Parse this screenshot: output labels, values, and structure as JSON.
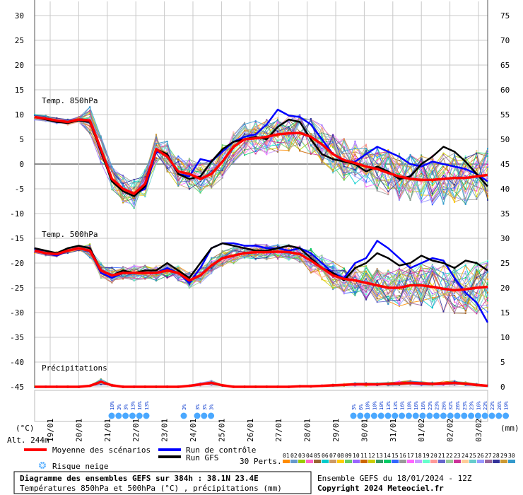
{
  "chart_data": {
    "type": "line",
    "title": "Diagramme des ensembles GEFS sur 384h : 38.1N 23.4E",
    "subtitle": "Températures 850hPa et 500hPa (°C) , précipitations (mm)",
    "left_axis": {
      "label": "(°C)",
      "ticks": [
        30,
        25,
        20,
        15,
        10,
        5,
        0,
        -5,
        -10,
        -15,
        -20,
        -25,
        -30,
        -35,
        -40,
        -45
      ],
      "ylim": [
        -45,
        30
      ]
    },
    "right_axis": {
      "label": "(mm)",
      "ticks": [
        75,
        70,
        65,
        60,
        55,
        50,
        45,
        40,
        35,
        30,
        25,
        20,
        15,
        10,
        5,
        0
      ],
      "ylim": [
        0,
        75
      ]
    },
    "x_labels": [
      "19/01",
      "20/01",
      "21/01",
      "22/01",
      "23/01",
      "24/01",
      "25/01",
      "26/01",
      "27/01",
      "28/01",
      "29/01",
      "30/01",
      "31/01",
      "01/02",
      "02/02",
      "03/02"
    ],
    "altitude": "Alt. 244m",
    "panel_labels": {
      "t850": "Temp. 850hPa",
      "t500": "Temp. 500hPa",
      "precip": "Précipitations"
    },
    "t850_mean": [
      9.5,
      9.2,
      8.8,
      8.5,
      9.0,
      8.8,
      3.0,
      -3.0,
      -5.0,
      -6.0,
      -4.0,
      3.0,
      1.5,
      -1.5,
      -2.0,
      -3.0,
      -2.0,
      0.5,
      3.5,
      5.0,
      5.2,
      5.5,
      6.0,
      6.2,
      6.3,
      5.5,
      4.0,
      2.0,
      0.8,
      0.2,
      -0.5,
      -1.0,
      -1.8,
      -2.5,
      -3.0,
      -3.2,
      -3.2,
      -3.0,
      -2.8,
      -2.8,
      -2.5,
      -2.2
    ],
    "t850_control": [
      9.5,
      9.2,
      8.6,
      8.3,
      9.0,
      8.8,
      3.0,
      -3.5,
      -5.0,
      -6.0,
      -5.0,
      2.5,
      2.0,
      -2.0,
      -2.5,
      1.0,
      0.5,
      2.5,
      4.5,
      5.5,
      6.0,
      8.0,
      11.0,
      9.8,
      9.5,
      8.0,
      5.0,
      2.0,
      0.5,
      0.5,
      2.0,
      3.5,
      2.5,
      1.5,
      0.0,
      -0.5,
      0.5,
      0.0,
      -0.5,
      -1.0,
      -2.0,
      -3.5
    ],
    "t850_gfs": [
      9.5,
      9.0,
      8.5,
      8.3,
      8.8,
      8.5,
      2.5,
      -3.5,
      -5.5,
      -6.5,
      -4.5,
      3.0,
      2.0,
      -2.0,
      -3.0,
      -2.5,
      0.5,
      3.0,
      4.5,
      5.0,
      5.5,
      5.0,
      7.5,
      9.0,
      8.5,
      5.0,
      2.0,
      1.0,
      0.5,
      0.0,
      -1.5,
      -0.5,
      -1.5,
      -3.0,
      -2.5,
      0.0,
      1.5,
      3.5,
      2.5,
      0.5,
      -2.0,
      -4.5
    ],
    "t500_mean": [
      -17.5,
      -18.0,
      -18.2,
      -17.5,
      -17.0,
      -17.5,
      -21.5,
      -22.5,
      -22.0,
      -22.0,
      -22.0,
      -22.0,
      -21.5,
      -22.0,
      -23.5,
      -22.5,
      -20.5,
      -19.0,
      -18.5,
      -18.0,
      -17.8,
      -17.8,
      -17.7,
      -17.8,
      -18.2,
      -19.5,
      -21.0,
      -22.5,
      -23.2,
      -23.5,
      -24.0,
      -24.5,
      -25.0,
      -25.0,
      -24.5,
      -24.5,
      -24.8,
      -25.2,
      -25.5,
      -25.3,
      -25.0,
      -24.8
    ],
    "t500_control": [
      -17.0,
      -18.0,
      -18.5,
      -17.5,
      -17.0,
      -17.5,
      -22.0,
      -23.0,
      -22.0,
      -22.0,
      -22.0,
      -22.0,
      -21.0,
      -22.0,
      -24.0,
      -21.0,
      -17.0,
      -16.0,
      -16.0,
      -16.5,
      -16.5,
      -17.0,
      -17.0,
      -17.5,
      -17.0,
      -18.0,
      -20.0,
      -22.0,
      -23.0,
      -20.0,
      -19.0,
      -15.5,
      -17.0,
      -19.0,
      -21.0,
      -20.0,
      -19.0,
      -19.5,
      -23.0,
      -26.0,
      -28.0,
      -32.0
    ],
    "t500_gfs": [
      -17.0,
      -17.5,
      -18.0,
      -17.0,
      -16.5,
      -17.0,
      -21.5,
      -22.5,
      -21.5,
      -22.0,
      -21.5,
      -21.5,
      -20.0,
      -21.5,
      -23.0,
      -20.0,
      -17.0,
      -16.0,
      -16.5,
      -17.0,
      -17.5,
      -17.5,
      -17.0,
      -16.5,
      -17.0,
      -19.0,
      -21.0,
      -22.0,
      -23.5,
      -21.0,
      -20.0,
      -18.0,
      -19.0,
      -20.5,
      -20.0,
      -18.5,
      -19.5,
      -20.0,
      -21.0,
      -19.5,
      -20.0,
      -21.5
    ],
    "precip_mean_mm": [
      0,
      0,
      0,
      0,
      0,
      0.2,
      1.0,
      0.3,
      0,
      0,
      0,
      0,
      0,
      0,
      0.2,
      0.5,
      0.8,
      0.3,
      0,
      0,
      0,
      0,
      0,
      0,
      0.1,
      0.1,
      0.2,
      0.3,
      0.4,
      0.5,
      0.5,
      0.5,
      0.6,
      0.7,
      0.8,
      0.7,
      0.6,
      0.7,
      0.8,
      0.6,
      0.4,
      0.2
    ],
    "snow_risk": {
      "group1": [
        "10%",
        "3%",
        "3%",
        "13%",
        "16%",
        "13%"
      ],
      "group2": [
        "3%"
      ],
      "group3": [
        "3%",
        "3%",
        "3%"
      ],
      "group4": [
        "3%",
        "6%",
        "10%",
        "10%",
        "10%",
        "13%",
        "13%",
        "16%",
        "10%",
        "16%",
        "16%",
        "23%",
        "23%",
        "26%",
        "32%",
        "26%",
        "23%",
        "23%",
        "16%",
        "23%",
        "23%",
        "26%",
        "19%"
      ]
    },
    "member_count": 30
  },
  "legend": {
    "mean": "Moyenne des scénarios",
    "control": "Run de contrôle",
    "gfs": "Run GFS",
    "snow": "Risque neige",
    "perts": "30 Perts.",
    "pert_numbers": [
      "01",
      "02",
      "03",
      "04",
      "05",
      "06",
      "07",
      "08",
      "09",
      "10",
      "11",
      "12",
      "13",
      "14",
      "15",
      "16",
      "17",
      "18",
      "19",
      "20",
      "21",
      "22",
      "23",
      "24",
      "25",
      "26",
      "27",
      "28",
      "29",
      "30"
    ],
    "pert_colors": [
      "#ff8c00",
      "#6699cc",
      "#99cc00",
      "#ff66cc",
      "#996633",
      "#00cccc",
      "#cc9966",
      "#ffcc00",
      "#66cc66",
      "#9966ff",
      "#cc6600",
      "#cccc00",
      "#339966",
      "#00cc66",
      "#3366ff",
      "#999999",
      "#ff66ff",
      "#cc99ff",
      "#66ffcc",
      "#ff9999",
      "#6666cc",
      "#99cc99",
      "#cc3399",
      "#ffcc99",
      "#66cccc",
      "#9999ff",
      "#996699",
      "#333399",
      "#cc9933",
      "#3399cc"
    ]
  },
  "colors": {
    "mean": "#ff0000",
    "control": "#0000ff",
    "gfs": "#000000",
    "grid": "#c8c8c8",
    "snow": "#4aa8ff"
  },
  "footer": {
    "title": "Diagramme des ensembles GEFS sur 384h : 38.1N 23.4E",
    "subtitle": "Températures 850hPa et 500hPa (°C) , précipitations (mm)",
    "run_info": "Ensemble GEFS du 18/01/2024 - 12Z",
    "copyright": "Copyright 2024 Meteociel.fr"
  }
}
